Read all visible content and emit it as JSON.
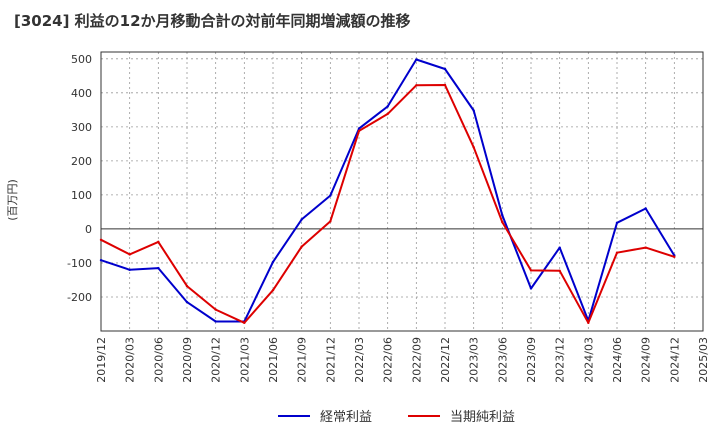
{
  "chart_data": {
    "type": "line",
    "title": "[3024]  利益の12か月移動合計の対前年同期増減額の推移",
    "ylabel": "(百万円)",
    "xlabel": "",
    "ylim": [
      -300,
      520
    ],
    "yticks": [
      -200,
      -100,
      0,
      100,
      200,
      300,
      400,
      500
    ],
    "x": [
      "2019/12",
      "2020/03",
      "2020/06",
      "2020/09",
      "2020/12",
      "2021/03",
      "2021/06",
      "2021/09",
      "2021/12",
      "2022/03",
      "2022/06",
      "2022/09",
      "2022/12",
      "2023/03",
      "2023/06",
      "2023/09",
      "2023/12",
      "2024/03",
      "2024/06",
      "2024/09",
      "2024/12",
      "2025/03"
    ],
    "series": [
      {
        "name": "経常利益",
        "color": "#0000cc",
        "values": [
          -92,
          -120,
          -115,
          -215,
          -272,
          -272,
          -97,
          28,
          98,
          295,
          360,
          498,
          470,
          348,
          40,
          -175,
          -55,
          -270,
          18,
          60,
          -78,
          null
        ]
      },
      {
        "name": "当期純利益",
        "color": "#dd0000",
        "values": [
          -32,
          -75,
          -38,
          -168,
          -237,
          -276,
          -180,
          -52,
          22,
          288,
          338,
          422,
          423,
          240,
          20,
          -122,
          -123,
          -276,
          -70,
          -55,
          -82,
          null
        ]
      }
    ],
    "grid": true,
    "legend_position": "bottom-center"
  }
}
